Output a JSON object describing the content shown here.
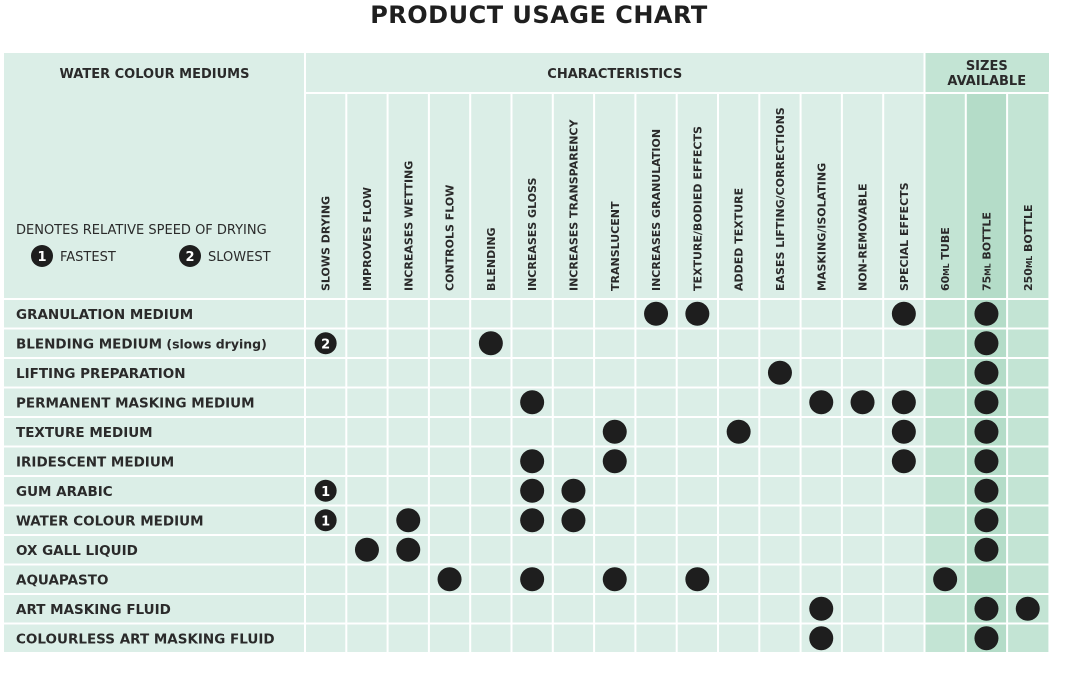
{
  "title": "PRODUCT USAGE CHART",
  "chart_data": {
    "type": "table",
    "row_header": "WATER COLOUR MEDIUMS",
    "group_characteristics": "CHARACTERISTICS",
    "group_sizes": "SIZES AVAILABLE",
    "legend": {
      "caption": "DENOTES RELATIVE SPEED OF DRYING",
      "fastest_symbol": "1",
      "fastest_label": "FASTEST",
      "slowest_symbol": "2",
      "slowest_label": "SLOWEST"
    },
    "characteristics": [
      "SLOWS DRYING",
      "IMPROVES FLOW",
      "INCREASES WETTING",
      "CONTROLS FLOW",
      "BLENDING",
      "INCREASES GLOSS",
      "INCREASES TRANSPARENCY",
      "TRANSLUCENT",
      "INCREASES GRANULATION",
      "TEXTURE/BODIED EFFECTS",
      "ADDED TEXTURE",
      "EASES LIFTING/CORRECTIONS",
      "MASKING/ISOLATING",
      "NON-REMOVABLE",
      "SPECIAL EFFECTS"
    ],
    "sizes": [
      {
        "number": "60",
        "unit": "ML",
        "label": "TUBE"
      },
      {
        "number": "75",
        "unit": "ML",
        "label": "BOTTLE"
      },
      {
        "number": "250",
        "unit": "ML",
        "label": "BOTTLE"
      }
    ],
    "rows": [
      {
        "name": "GRANULATION MEDIUM",
        "sub": "",
        "marks": {
          "8": "dot",
          "9": "dot",
          "14": "dot"
        },
        "sizes": [
          1
        ]
      },
      {
        "name": "BLENDING MEDIUM",
        "sub": "(slows drying)",
        "marks": {
          "0": "2",
          "4": "dot"
        },
        "sizes": [
          1
        ]
      },
      {
        "name": "LIFTING PREPARATION",
        "sub": "",
        "marks": {
          "11": "dot"
        },
        "sizes": [
          1
        ]
      },
      {
        "name": "PERMANENT MASKING MEDIUM",
        "sub": "",
        "marks": {
          "5": "dot",
          "12": "dot",
          "13": "dot",
          "14": "dot"
        },
        "sizes": [
          1
        ]
      },
      {
        "name": "TEXTURE MEDIUM",
        "sub": "",
        "marks": {
          "7": "dot",
          "10": "dot",
          "14": "dot"
        },
        "sizes": [
          1
        ]
      },
      {
        "name": "IRIDESCENT MEDIUM",
        "sub": "",
        "marks": {
          "5": "dot",
          "7": "dot",
          "14": "dot"
        },
        "sizes": [
          1
        ]
      },
      {
        "name": "GUM ARABIC",
        "sub": "",
        "marks": {
          "0": "1",
          "5": "dot",
          "6": "dot"
        },
        "sizes": [
          1
        ]
      },
      {
        "name": "WATER COLOUR MEDIUM",
        "sub": "",
        "marks": {
          "0": "1",
          "2": "dot",
          "5": "dot",
          "6": "dot"
        },
        "sizes": [
          1
        ]
      },
      {
        "name": "OX GALL LIQUID",
        "sub": "",
        "marks": {
          "1": "dot",
          "2": "dot"
        },
        "sizes": [
          1
        ]
      },
      {
        "name": "AQUAPASTO",
        "sub": "",
        "marks": {
          "3": "dot",
          "5": "dot",
          "7": "dot",
          "9": "dot"
        },
        "sizes": [
          0
        ]
      },
      {
        "name": "ART MASKING FLUID",
        "sub": "",
        "marks": {
          "12": "dot"
        },
        "sizes": [
          1,
          2
        ]
      },
      {
        "name": "COLOURLESS ART MASKING FLUID",
        "sub": "",
        "marks": {
          "12": "dot"
        },
        "sizes": [
          1
        ]
      }
    ],
    "colors": {
      "cell_light": "#dbeee7",
      "cell_sizes": "#c3e4d4",
      "cell_sizes_75": "#b4dcc8",
      "grid": "#ffffff",
      "dot": "#1e1e1e"
    }
  }
}
